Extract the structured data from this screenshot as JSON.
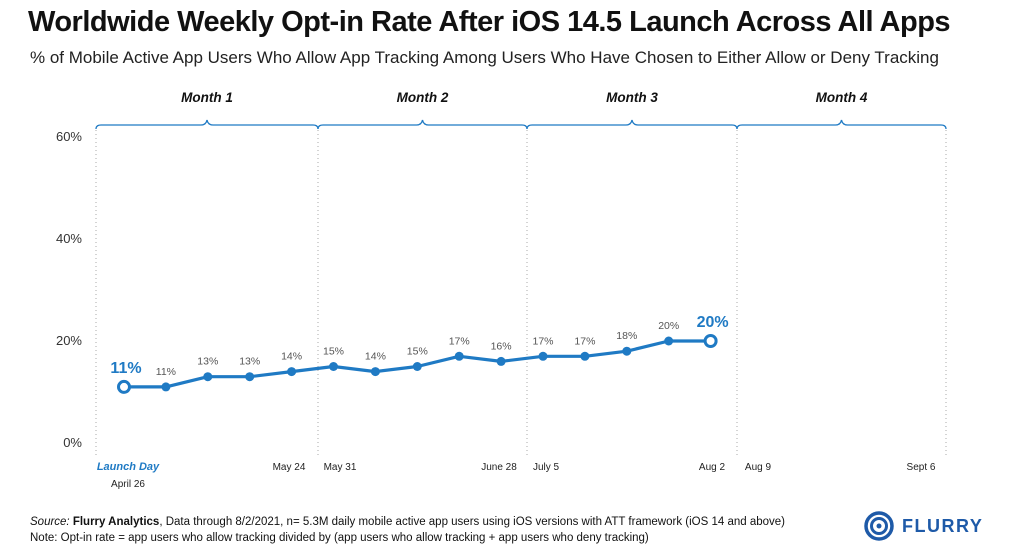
{
  "title": "Worldwide Weekly Opt-in Rate After iOS 14.5 Launch Across All Apps",
  "subtitle": "% of Mobile Active App Users Who Allow App Tracking Among Users Who Have Chosen to Either Allow or Deny Tracking",
  "chart_data": {
    "type": "line",
    "y_ticks": [
      "60%",
      "40%",
      "20%",
      "0%"
    ],
    "ylim": [
      0,
      60
    ],
    "months": [
      "Month 1",
      "Month 2",
      "Month 3",
      "Month 4"
    ],
    "x_labels": [
      "May 24",
      "May 31",
      "June 28",
      "July 5",
      "Aug 2",
      "Aug 9",
      "Sept 6"
    ],
    "launch_label": "Launch Day",
    "launch_date": "April 26",
    "series": [
      {
        "values": [
          11,
          11,
          13,
          13,
          14,
          15,
          14,
          15,
          17,
          16,
          17,
          17,
          18,
          20,
          20
        ],
        "labels": [
          "11%",
          "11%",
          "13%",
          "13%",
          "14%",
          "15%",
          "14%",
          "15%",
          "17%",
          "16%",
          "17%",
          "17%",
          "18%",
          "20%",
          "20%"
        ]
      }
    ],
    "grid": false,
    "line_color": "#1f7ac4",
    "highlight_color": "#1f7ac4",
    "label_color": "#555555"
  },
  "footer": {
    "source_label": "Source: ",
    "source_name": "Flurry Analytics",
    "source_rest": ", Data through 8/2/2021, n= 5.3M daily mobile active app users using iOS versions with ATT framework (iOS 14 and above)",
    "note": "Note: Opt-in rate = app users who allow tracking divided by (app users who allow tracking + app users who deny tracking)"
  },
  "logo": {
    "text": "FLURRY",
    "color": "#1e5aa8"
  }
}
